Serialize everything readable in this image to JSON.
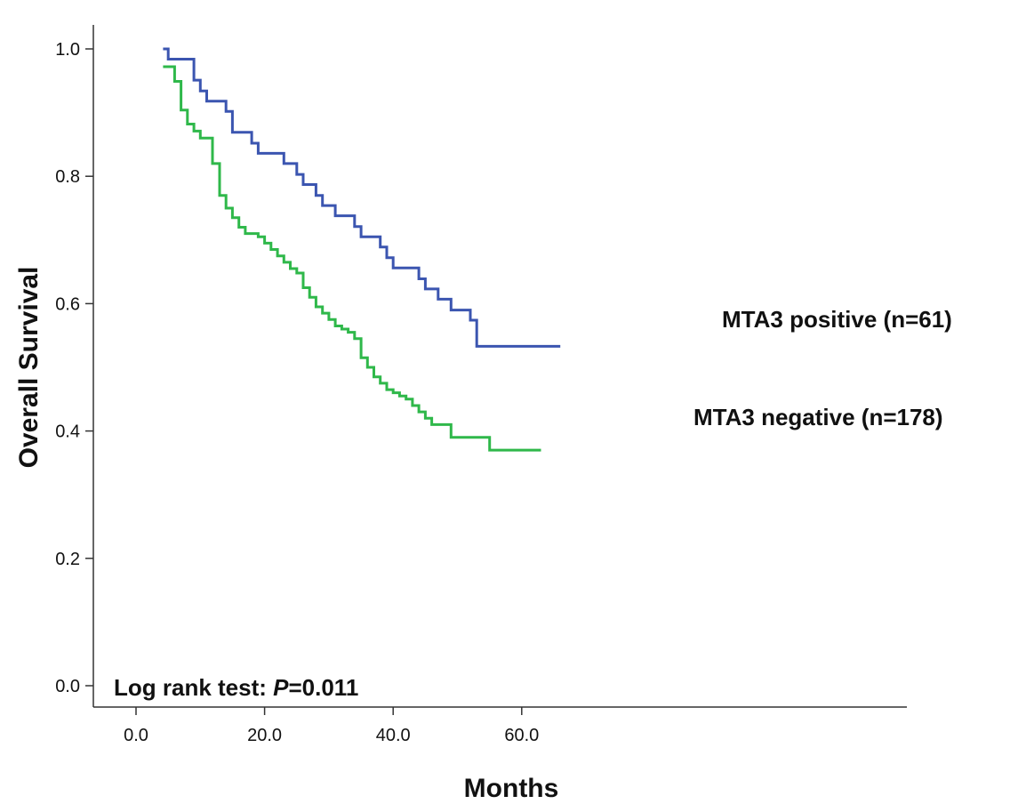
{
  "chart_data": {
    "type": "line",
    "title": "",
    "xlabel": "Months",
    "ylabel": "Overall Survival",
    "xlim": [
      -3,
      72
    ],
    "ylim": [
      -0.02,
      1.02
    ],
    "x_ticks": [
      "0.0",
      "20.0",
      "40.0",
      "60.0"
    ],
    "y_ticks": [
      "0.0",
      "0.2",
      "0.4",
      "0.6",
      "0.8",
      "1.0"
    ],
    "grid": false,
    "annotation": {
      "prefix": "Log rank test: ",
      "p_symbol": "P",
      "p_value": "=0.011"
    },
    "series": [
      {
        "name": "MTA3 positive (n=61)",
        "color": "#3b55b0",
        "points": [
          [
            4.2,
            1.0
          ],
          [
            5,
            0.984
          ],
          [
            9,
            0.951
          ],
          [
            10,
            0.934
          ],
          [
            11,
            0.918
          ],
          [
            14,
            0.902
          ],
          [
            15,
            0.869
          ],
          [
            18,
            0.852
          ],
          [
            19,
            0.836
          ],
          [
            23,
            0.82
          ],
          [
            25,
            0.803
          ],
          [
            26,
            0.787
          ],
          [
            28,
            0.77
          ],
          [
            29,
            0.754
          ],
          [
            31,
            0.738
          ],
          [
            34,
            0.721
          ],
          [
            35,
            0.705
          ],
          [
            38,
            0.689
          ],
          [
            39,
            0.672
          ],
          [
            40,
            0.656
          ],
          [
            44,
            0.639
          ],
          [
            45,
            0.623
          ],
          [
            47,
            0.607
          ],
          [
            49,
            0.59
          ],
          [
            52,
            0.574
          ],
          [
            53,
            0.533
          ],
          [
            66,
            0.533
          ]
        ]
      },
      {
        "name": "MTA3 negative (n=178)",
        "color": "#2fb84a",
        "points": [
          [
            4.2,
            0.972
          ],
          [
            6,
            0.949
          ],
          [
            7,
            0.904
          ],
          [
            8,
            0.882
          ],
          [
            9,
            0.871
          ],
          [
            10,
            0.86
          ],
          [
            11,
            0.86
          ],
          [
            11.9,
            0.82
          ],
          [
            13,
            0.77
          ],
          [
            14,
            0.75
          ],
          [
            15,
            0.735
          ],
          [
            16,
            0.72
          ],
          [
            17,
            0.71
          ],
          [
            19,
            0.705
          ],
          [
            20,
            0.695
          ],
          [
            21,
            0.685
          ],
          [
            22,
            0.675
          ],
          [
            23,
            0.665
          ],
          [
            24,
            0.655
          ],
          [
            25,
            0.648
          ],
          [
            26,
            0.625
          ],
          [
            27,
            0.61
          ],
          [
            28,
            0.595
          ],
          [
            29,
            0.585
          ],
          [
            30,
            0.575
          ],
          [
            31,
            0.565
          ],
          [
            32,
            0.56
          ],
          [
            33,
            0.555
          ],
          [
            34,
            0.545
          ],
          [
            35,
            0.515
          ],
          [
            36,
            0.5
          ],
          [
            37,
            0.485
          ],
          [
            38,
            0.475
          ],
          [
            39,
            0.465
          ],
          [
            40,
            0.46
          ],
          [
            41,
            0.455
          ],
          [
            42,
            0.45
          ],
          [
            43,
            0.44
          ],
          [
            44,
            0.43
          ],
          [
            45,
            0.42
          ],
          [
            46,
            0.41
          ],
          [
            49,
            0.39
          ],
          [
            55,
            0.37
          ],
          [
            63,
            0.37
          ]
        ]
      }
    ]
  }
}
